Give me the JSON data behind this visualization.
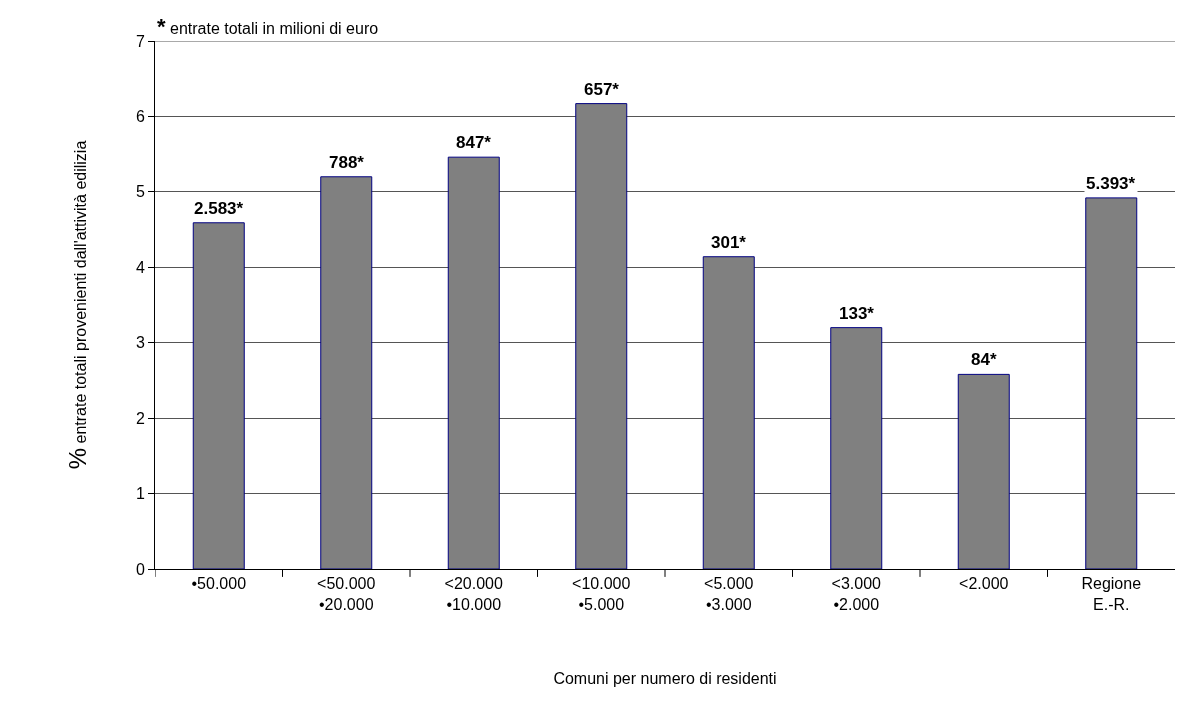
{
  "chart_data": {
    "type": "bar",
    "categories": [
      "•50.000",
      "<50.000\n•20.000",
      "<20.000\n•10.000",
      "<10.000\n•5.000",
      "<5.000\n•3.000",
      "<3.000\n•2.000",
      "<2.000",
      "Regione\nE.-R."
    ],
    "values": [
      4.59,
      5.2,
      5.46,
      6.17,
      4.14,
      3.2,
      2.58,
      4.92
    ],
    "color": "#808080",
    "xlabel": "Comuni per numero di residenti",
    "ylabel": "% entrate totali provenienti dall'attività edilizia",
    "annotations": [
      "* entrate totali in milioni di euro",
      {
        "text": "2.583*",
        "x": "•50.000",
        "y": 4.59
      },
      {
        "text": "788*",
        "x": "<50.000\n•20.000",
        "y": 5.2
      },
      {
        "text": "847*",
        "x": "<20.000\n•10.000",
        "y": 5.46
      },
      {
        "text": "657*",
        "x": "<10.000\n•5.000",
        "y": 6.17
      },
      {
        "text": "301*",
        "x": "<5.000\n•3.000",
        "y": 4.14
      },
      {
        "text": "133*",
        "x": "<3.000\n•2.000",
        "y": 3.2
      },
      {
        "text": "84*",
        "x": "<2.000",
        "y": 2.58
      },
      {
        "text": "5.393*",
        "x": "Regione\nE.-R.",
        "y": 4.92
      }
    ],
    "ylim": [
      0,
      7
    ],
    "yticks": [
      0,
      1,
      2,
      3,
      4,
      5,
      6,
      7
    ],
    "grid": "y"
  }
}
